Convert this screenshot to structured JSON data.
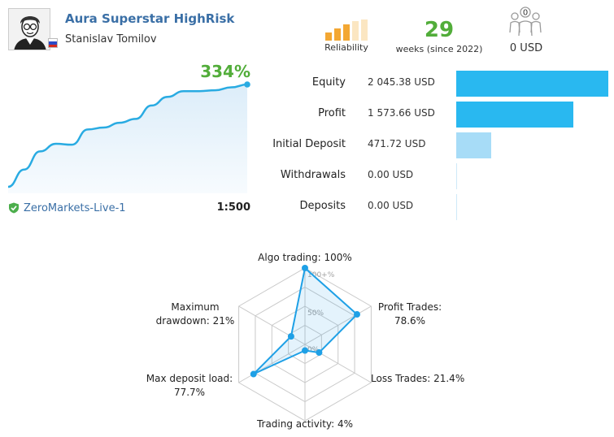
{
  "header": {
    "signal_name": "Aura Superstar HighRisk",
    "author": "Stanislav Tomilov",
    "country_flag": "russia-flag-icon",
    "reliability_label": "Reliability",
    "reliability_level": 3,
    "reliability_max": 5,
    "weeks_value": "29",
    "weeks_label": "weeks (since 2022)",
    "subscribers_count": "0",
    "subscribers_label": "0 USD"
  },
  "growth": {
    "value": "334%",
    "broker": "ZeroMarkets-Live-1",
    "leverage": "1:500",
    "line_color": "#29abe2",
    "fill_color": "#e6f2fb",
    "curve": [
      0,
      18,
      37,
      45,
      44,
      60,
      62,
      67,
      71,
      85,
      94,
      100,
      100,
      101,
      104,
      107
    ]
  },
  "financials": [
    {
      "label": "Equity",
      "value": "2 045.38 USD",
      "amount": 2045.38,
      "color": "#29b8f0"
    },
    {
      "label": "Profit",
      "value": "1 573.66 USD",
      "amount": 1573.66,
      "color": "#29b8f0"
    },
    {
      "label": "Initial Deposit",
      "value": "471.72 USD",
      "amount": 471.72,
      "color": "#a7dcf7"
    },
    {
      "label": "Withdrawals",
      "value": "0.00 USD",
      "amount": 0,
      "color": "#a7dcf7"
    },
    {
      "label": "Deposits",
      "value": "0.00 USD",
      "amount": 0,
      "color": "#a7dcf7"
    }
  ],
  "radar": {
    "grid_labels": [
      "100+%",
      "50%",
      "0%"
    ],
    "series_color": "#1ea0e6",
    "axes": [
      {
        "label": "Algo trading: 100%",
        "value": 100
      },
      {
        "label": "Profit Trades:",
        "label2": "78.6%",
        "value": 78.6
      },
      {
        "label": "Loss Trades: 21.4%",
        "value": 21.4
      },
      {
        "label": "Trading activity: 4%",
        "value": 4
      },
      {
        "label": "Max deposit load:",
        "label2": "77.7%",
        "value": 77.7
      },
      {
        "label": "Maximum",
        "label2": "drawdown: 21%",
        "value": 21
      }
    ]
  }
}
